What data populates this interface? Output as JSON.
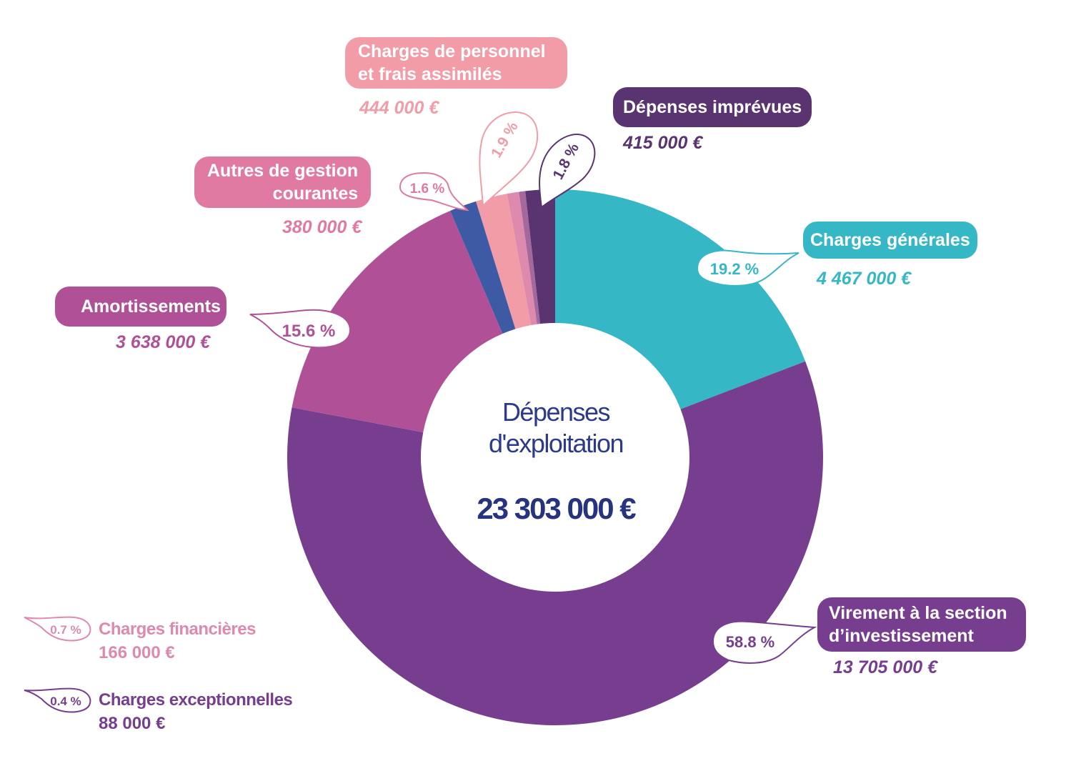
{
  "colors": {
    "generales": "#36b7c5",
    "virement": "#773e8f",
    "amortissements": "#b05197",
    "autres": "#3f5aa5",
    "personnel": "#f19ca6",
    "financieres": "#dd8aae",
    "exceptionnelles": "#a5689c",
    "imprevues": "#5a3470",
    "center_text": "#2b3a8c"
  },
  "center": {
    "line1": "Dépenses",
    "line2": "d'exploitation",
    "total": "23 303 000 €"
  },
  "labels": {
    "generales": {
      "name": "Charges générales",
      "amount": "4 467 000 €",
      "pct": "19.2 %"
    },
    "virement": {
      "name_line1": "Virement à la section",
      "name_line2": "d’investissement",
      "amount": "13 705 000 €",
      "pct": "58.8 %"
    },
    "amortissements": {
      "name": "Amortissements",
      "amount": "3 638 000 €",
      "pct": "15.6 %"
    },
    "autres": {
      "name_line1": "Autres de gestion",
      "name_line2": "courantes",
      "amount": "380 000 €",
      "pct": "1.6 %"
    },
    "personnel": {
      "name_line1": "Charges de personnel",
      "name_line2": "et frais assimilés",
      "amount": "444 000 €",
      "pct": "1.9 %"
    },
    "imprevues": {
      "name": "Dépenses imprévues",
      "amount": "415 000 €",
      "pct": "1.8 %"
    },
    "financieres": {
      "name": "Charges financières",
      "amount": "166 000 €",
      "pct": "0.7 %"
    },
    "exceptionnelles": {
      "name": "Charges exceptionnelles",
      "amount": "88 000 €",
      "pct": "0.4 %"
    }
  },
  "chart_data": {
    "type": "pie",
    "variant": "donut",
    "title": "Dépenses d'exploitation",
    "total": 23303000,
    "unit": "€",
    "categories": [
      "Charges générales",
      "Virement à la section d’investissement",
      "Amortissements",
      "Autres de gestion courantes",
      "Charges de personnel et frais assimilés",
      "Charges financières",
      "Charges exceptionnelles",
      "Dépenses imprévues"
    ],
    "values": [
      4467000,
      13705000,
      3638000,
      380000,
      444000,
      166000,
      88000,
      415000
    ],
    "percentages": [
      19.2,
      58.8,
      15.6,
      1.6,
      1.9,
      0.7,
      0.4,
      1.8
    ]
  }
}
